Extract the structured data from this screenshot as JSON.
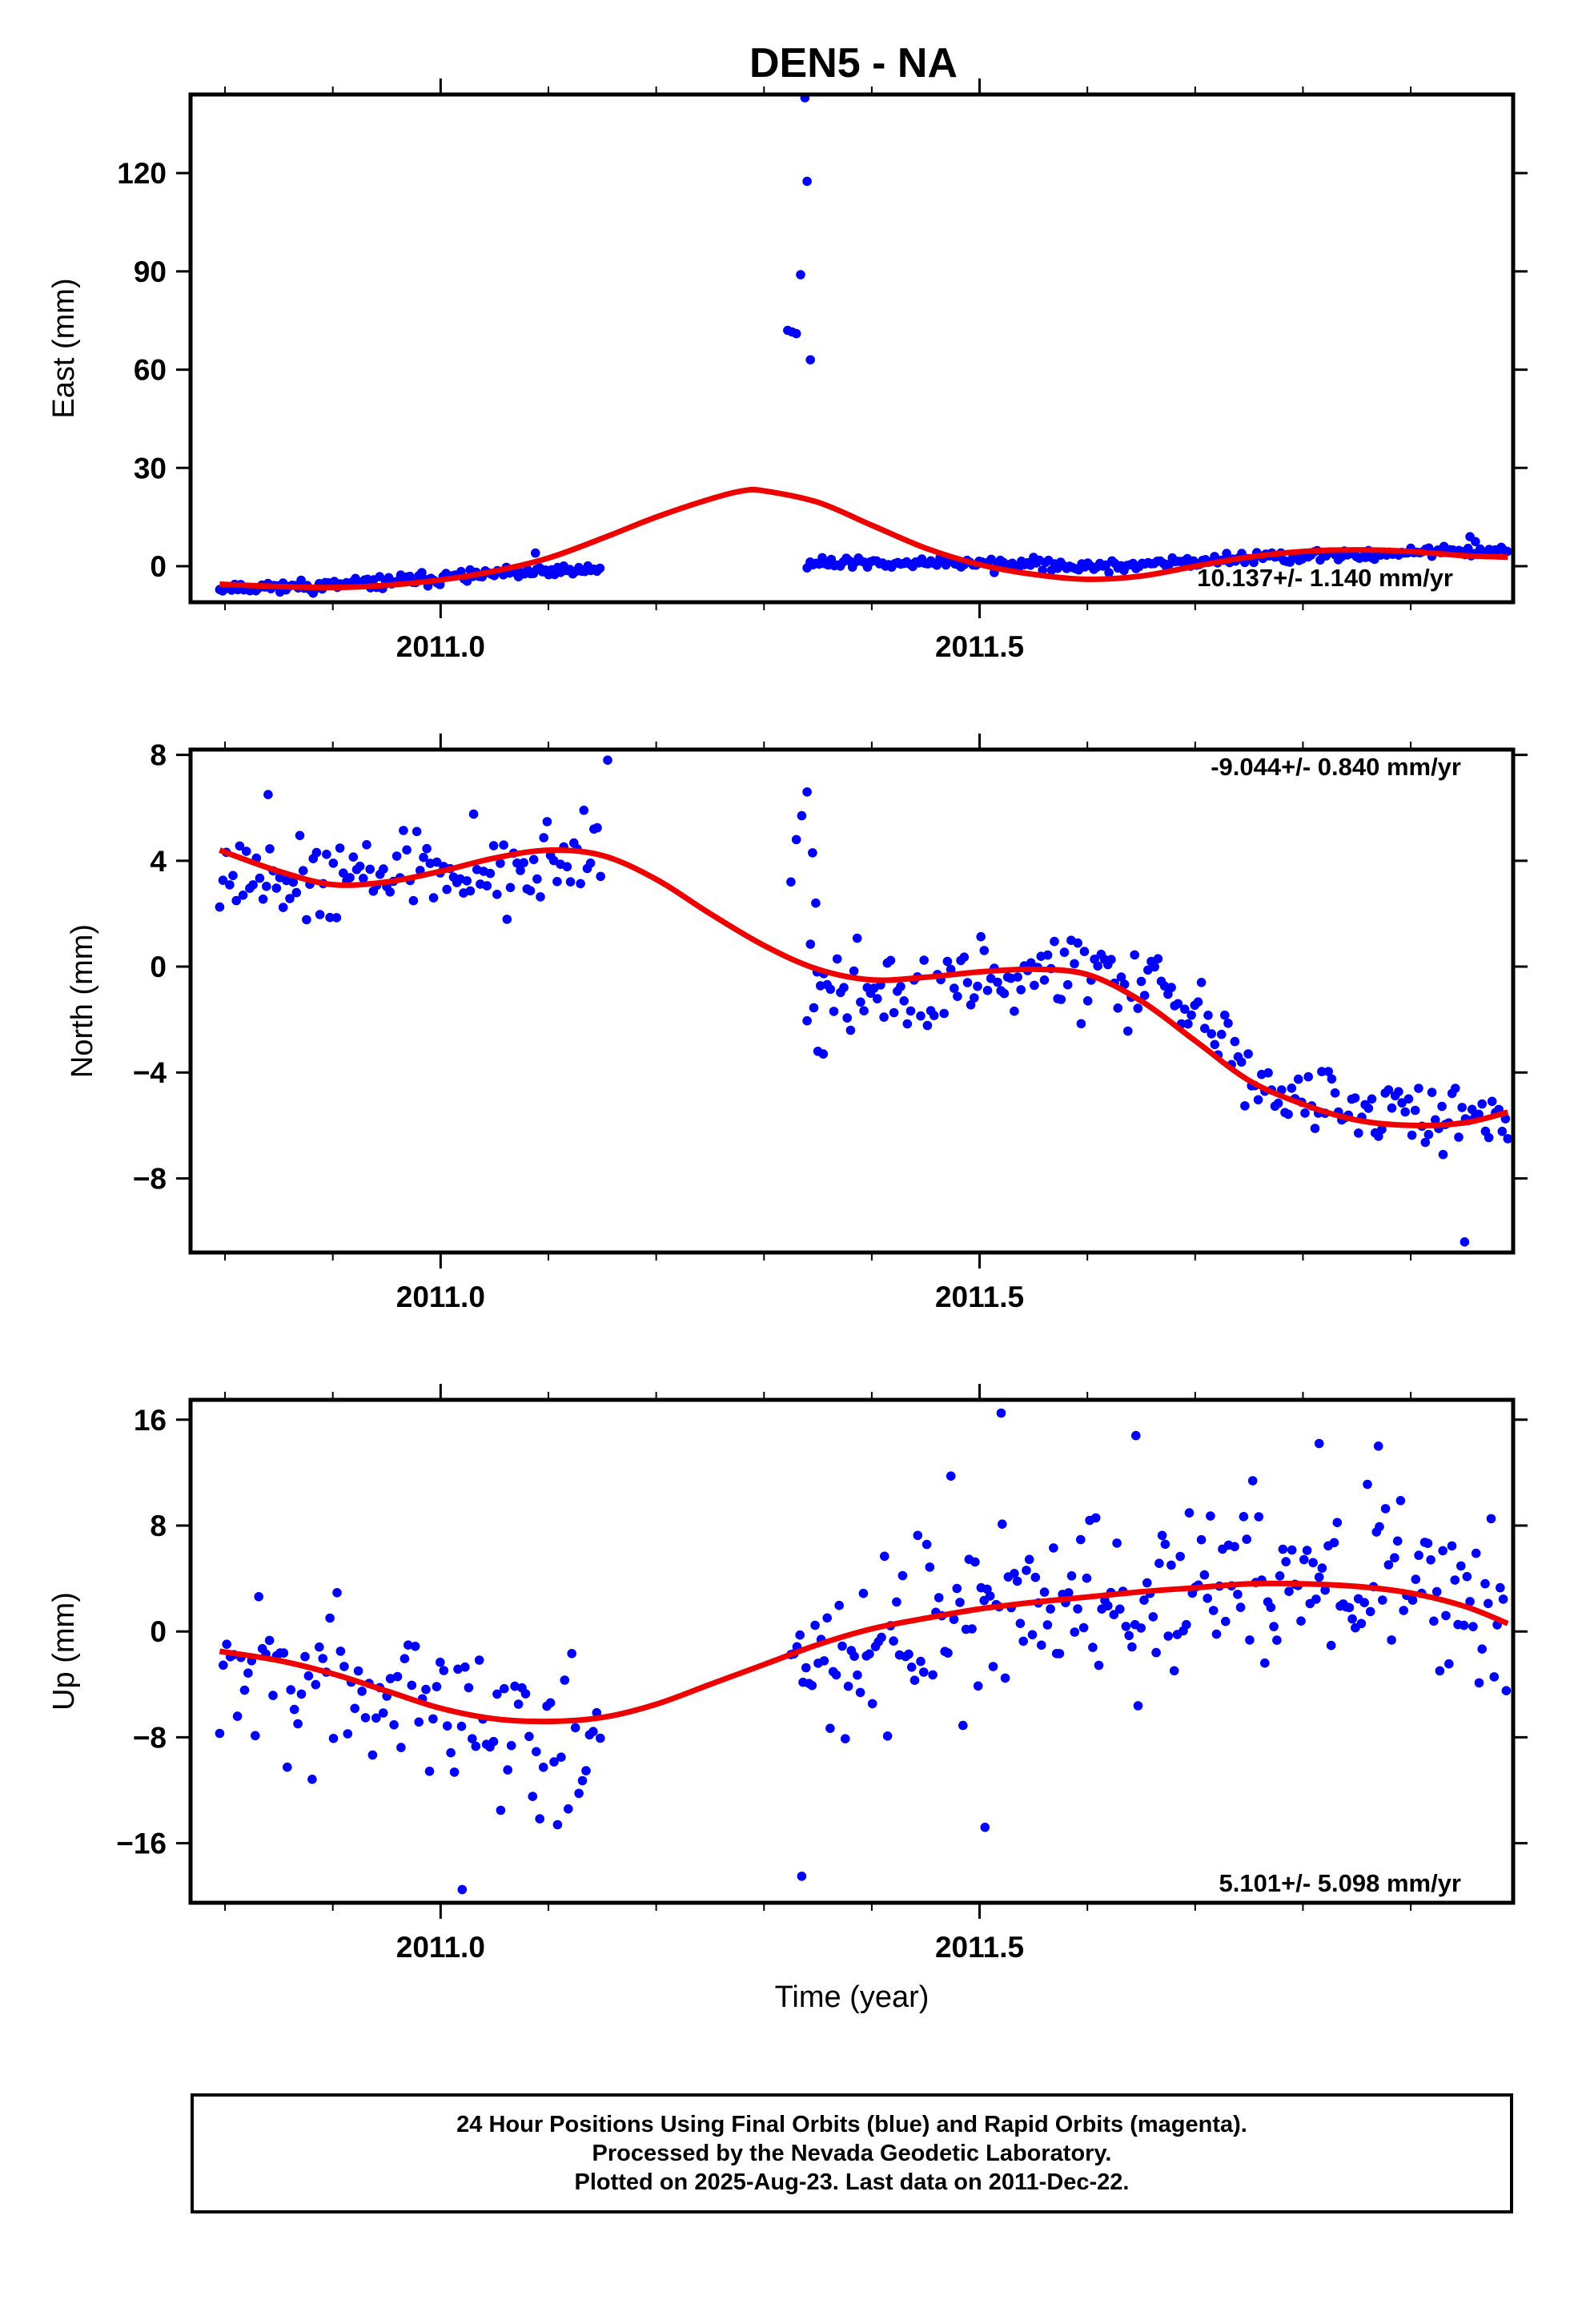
{
  "title": "DEN5 - NA",
  "colors": {
    "final_points": "#0000ff",
    "fit_line": "#ee0000",
    "frame": "#000000"
  },
  "footer": {
    "lines": [
      "24 Hour Positions Using Final Orbits (blue) and Rapid Orbits (magenta).",
      "Processed by the Nevada Geodetic Laboratory.",
      "Plotted on 2025-Aug-23. Last data on 2011-Dec-22."
    ]
  },
  "chart_data": [
    {
      "type": "scatter",
      "name": "east",
      "ylabel": "East (mm)",
      "xlabel": "",
      "xlim": [
        2010.768,
        2011.995
      ],
      "ylim": [
        -11,
        144
      ],
      "xticks": [
        2011.0,
        2011.5
      ],
      "xtick_labels": [
        "2011.0",
        "2011.5"
      ],
      "yticks": [
        0,
        30,
        60,
        90,
        120
      ],
      "ytick_labels": [
        "0",
        "30",
        "60",
        "90",
        "120"
      ],
      "rate_label": "10.137+/- 1.140 mm/yr",
      "segments": [
        {
          "x0": 2010.795,
          "x1": 2011.15,
          "step": 0.0028,
          "trend": [
            [
              2010.795,
              -6.5
            ],
            [
              2010.9,
              -6.0
            ],
            [
              2011.0,
              -3.5
            ],
            [
              2011.1,
              -1.8
            ],
            [
              2011.15,
              -1.0
            ]
          ],
          "noise": 1.3,
          "seed": 11
        },
        {
          "x0": 2011.34,
          "x1": 2011.99,
          "step": 0.0028,
          "trend": [
            [
              2011.34,
              1.0
            ],
            [
              2011.5,
              1.0
            ],
            [
              2011.62,
              0.0
            ],
            [
              2011.8,
              3.0
            ],
            [
              2011.99,
              5.0
            ]
          ],
          "noise": 1.2,
          "seed": 12
        }
      ],
      "extra_points": [
        [
          2011.322,
          72
        ],
        [
          2011.326,
          71.5
        ],
        [
          2011.33,
          71
        ],
        [
          2011.334,
          89
        ],
        [
          2011.338,
          143
        ],
        [
          2011.34,
          117.5
        ],
        [
          2011.343,
          63
        ],
        [
          2011.088,
          4
        ],
        [
          2011.955,
          9
        ],
        [
          2011.96,
          7.5
        ]
      ],
      "fit": [
        [
          2010.795,
          -5.5
        ],
        [
          2010.85,
          -6.2
        ],
        [
          2010.9,
          -6.5
        ],
        [
          2010.95,
          -5.8
        ],
        [
          2011.0,
          -4.2
        ],
        [
          2011.05,
          -1.5
        ],
        [
          2011.1,
          2.5
        ],
        [
          2011.15,
          8.5
        ],
        [
          2011.2,
          15
        ],
        [
          2011.25,
          20.5
        ],
        [
          2011.28,
          23
        ],
        [
          2011.3,
          23
        ],
        [
          2011.35,
          19.5
        ],
        [
          2011.4,
          12.5
        ],
        [
          2011.45,
          5.5
        ],
        [
          2011.5,
          0.5
        ],
        [
          2011.55,
          -2.5
        ],
        [
          2011.6,
          -4.0
        ],
        [
          2011.65,
          -3.0
        ],
        [
          2011.7,
          0
        ],
        [
          2011.75,
          2.8
        ],
        [
          2011.8,
          4.5
        ],
        [
          2011.85,
          5.0
        ],
        [
          2011.9,
          4.5
        ],
        [
          2011.95,
          3.2
        ],
        [
          2011.99,
          2.8
        ]
      ]
    },
    {
      "type": "scatter",
      "name": "north",
      "ylabel": "North (mm)",
      "xlabel": "",
      "xlim": [
        2010.768,
        2011.995
      ],
      "ylim": [
        -10.8,
        8.2
      ],
      "xticks": [
        2011.0,
        2011.5
      ],
      "xtick_labels": [
        "2011.0",
        "2011.5"
      ],
      "yticks": [
        -8,
        -4,
        0,
        4,
        8
      ],
      "ytick_labels": [
        "−8",
        "−4",
        "0",
        "4",
        "8"
      ],
      "rate_label": "-9.044+/- 0.840 mm/yr",
      "segments": [
        {
          "x0": 2010.795,
          "x1": 2011.15,
          "step": 0.0031,
          "trend": [
            [
              2010.795,
              3.6
            ],
            [
              2010.95,
              3.4
            ],
            [
              2011.1,
              3.9
            ],
            [
              2011.15,
              4.0
            ]
          ],
          "noise": 1.1,
          "seed": 21
        },
        {
          "x0": 2011.34,
          "x1": 2011.99,
          "step": 0.0031,
          "trend": [
            [
              2011.34,
              -1.0
            ],
            [
              2011.45,
              -0.6
            ],
            [
              2011.6,
              -0.2
            ],
            [
              2011.7,
              -1.5
            ],
            [
              2011.78,
              -5.0
            ],
            [
              2011.9,
              -5.5
            ],
            [
              2011.99,
              -5.5
            ]
          ],
          "noise": 1.05,
          "seed": 22
        }
      ],
      "extra_points": [
        [
          2011.155,
          7.8
        ],
        [
          2010.84,
          6.5
        ],
        [
          2011.325,
          3.2
        ],
        [
          2011.33,
          4.8
        ],
        [
          2011.335,
          5.7
        ],
        [
          2011.34,
          6.6
        ],
        [
          2011.345,
          4.3
        ],
        [
          2011.348,
          2.4
        ],
        [
          2011.35,
          -3.2
        ],
        [
          2011.355,
          -3.3
        ],
        [
          2011.95,
          -10.4
        ],
        [
          2011.93,
          -7.1
        ],
        [
          2011.99,
          -6.5
        ]
      ],
      "fit": [
        [
          2010.795,
          4.4
        ],
        [
          2010.85,
          3.6
        ],
        [
          2010.9,
          3.1
        ],
        [
          2010.95,
          3.2
        ],
        [
          2011.0,
          3.6
        ],
        [
          2011.05,
          4.1
        ],
        [
          2011.1,
          4.4
        ],
        [
          2011.15,
          4.2
        ],
        [
          2011.2,
          3.3
        ],
        [
          2011.25,
          2.0
        ],
        [
          2011.3,
          0.8
        ],
        [
          2011.35,
          -0.1
        ],
        [
          2011.4,
          -0.5
        ],
        [
          2011.45,
          -0.4
        ],
        [
          2011.5,
          -0.2
        ],
        [
          2011.55,
          -0.1
        ],
        [
          2011.6,
          -0.3
        ],
        [
          2011.65,
          -1.3
        ],
        [
          2011.7,
          -2.8
        ],
        [
          2011.75,
          -4.3
        ],
        [
          2011.8,
          -5.2
        ],
        [
          2011.85,
          -5.8
        ],
        [
          2011.9,
          -6.0
        ],
        [
          2011.95,
          -5.9
        ],
        [
          2011.99,
          -5.5
        ]
      ]
    },
    {
      "type": "scatter",
      "name": "up",
      "ylabel": "Up (mm)",
      "xlabel": "Time (year)",
      "xlim": [
        2010.768,
        2011.995
      ],
      "ylim": [
        -20.5,
        17.5
      ],
      "xticks": [
        2011.0,
        2011.5
      ],
      "xtick_labels": [
        "2011.0",
        "2011.5"
      ],
      "yticks": [
        -16,
        -8,
        0,
        8,
        16
      ],
      "ytick_labels": [
        "−16",
        "−8",
        "0",
        "8",
        "16"
      ],
      "rate_label": "5.101+/- 5.098 mm/yr",
      "segments": [
        {
          "x0": 2010.795,
          "x1": 2011.15,
          "step": 0.0033,
          "trend": [
            [
              2010.795,
              -3.5
            ],
            [
              2010.9,
              -3.5
            ],
            [
              2011.0,
              -6.5
            ],
            [
              2011.1,
              -7.5
            ],
            [
              2011.15,
              -7.0
            ]
          ],
          "noise": 4.4,
          "seed": 31
        },
        {
          "x0": 2011.325,
          "x1": 2011.99,
          "step": 0.0028,
          "trend": [
            [
              2011.325,
              -3
            ],
            [
              2011.45,
              0.5
            ],
            [
              2011.6,
              2.5
            ],
            [
              2011.8,
              4.0
            ],
            [
              2011.9,
              3.0
            ],
            [
              2011.99,
              1.5
            ]
          ],
          "noise": 4.6,
          "seed": 32
        }
      ],
      "extra_points": [
        [
          2011.52,
          16.5
        ],
        [
          2011.645,
          14.8
        ],
        [
          2011.335,
          -18.5
        ],
        [
          2011.505,
          -14.8
        ],
        [
          2011.02,
          -19.5
        ],
        [
          2011.815,
          14.2
        ],
        [
          2011.87,
          14.0
        ]
      ],
      "fit": [
        [
          2010.795,
          -1.5
        ],
        [
          2010.85,
          -2.2
        ],
        [
          2010.9,
          -3.2
        ],
        [
          2010.95,
          -4.5
        ],
        [
          2011.0,
          -5.8
        ],
        [
          2011.05,
          -6.6
        ],
        [
          2011.1,
          -6.8
        ],
        [
          2011.15,
          -6.5
        ],
        [
          2011.2,
          -5.5
        ],
        [
          2011.25,
          -4.0
        ],
        [
          2011.3,
          -2.5
        ],
        [
          2011.35,
          -1.0
        ],
        [
          2011.4,
          0.2
        ],
        [
          2011.45,
          1.0
        ],
        [
          2011.5,
          1.7
        ],
        [
          2011.55,
          2.2
        ],
        [
          2011.6,
          2.6
        ],
        [
          2011.65,
          3.0
        ],
        [
          2011.7,
          3.3
        ],
        [
          2011.75,
          3.6
        ],
        [
          2011.8,
          3.6
        ],
        [
          2011.85,
          3.4
        ],
        [
          2011.9,
          2.9
        ],
        [
          2011.95,
          1.9
        ],
        [
          2011.99,
          0.6
        ]
      ]
    }
  ]
}
